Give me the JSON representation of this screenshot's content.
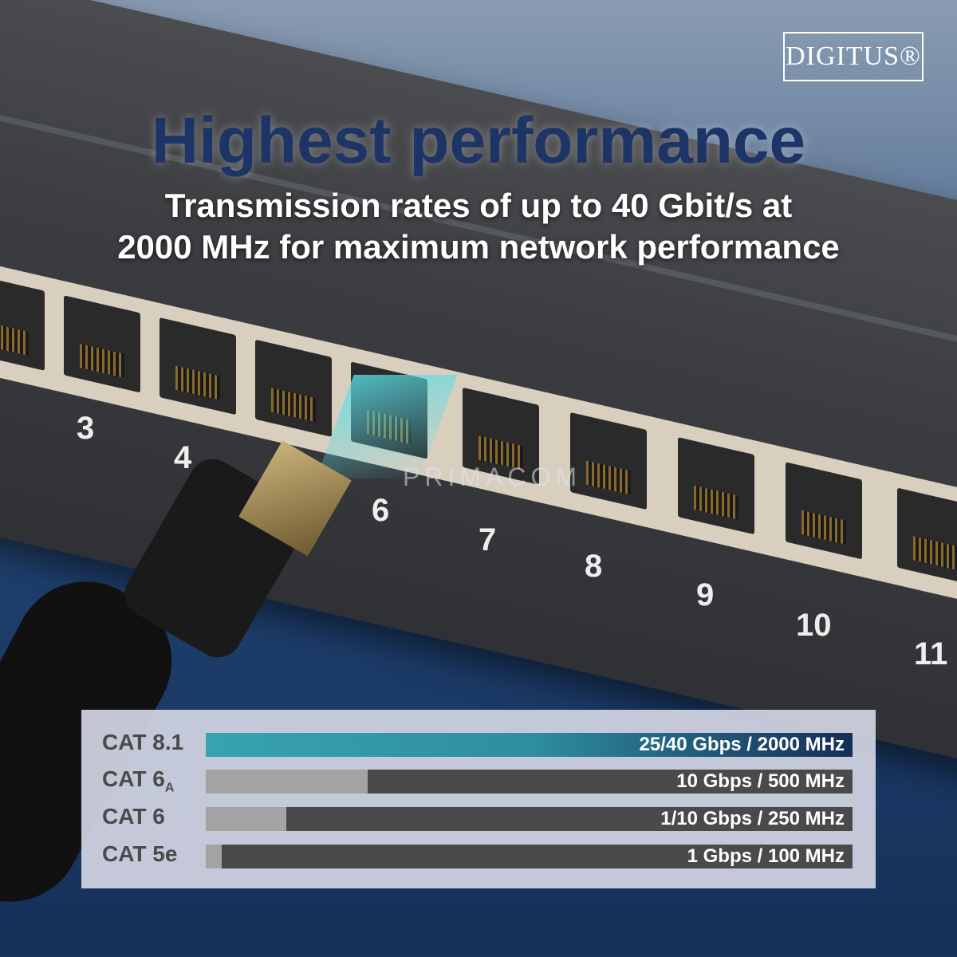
{
  "brand": {
    "logo": "DIGITUS®"
  },
  "headline": "Highest performance",
  "subheadline": {
    "line1": "Transmission rates of up to 40 Gbit/s at",
    "line2": "2000 MHz for maximum network performance"
  },
  "watermark": "PRIMACOM",
  "port_numbers": [
    "3",
    "4",
    "6",
    "7",
    "8",
    "9",
    "10",
    "11"
  ],
  "colors": {
    "headline": "#1c3566",
    "cat8_bar_start": "#38a3b0",
    "cat8_bar_end": "#172d55",
    "bar_bg": "#4a4a4a",
    "bar_fill": "#a3a3a3"
  },
  "comparison": [
    {
      "category": "CAT 8.1",
      "sub": "",
      "spec": "25/40 Gbps / 2000 MHz",
      "fill_percent": 100
    },
    {
      "category": "CAT 6",
      "sub": "A",
      "spec": "10 Gbps / 500 MHz",
      "fill_percent": 25
    },
    {
      "category": "CAT 6",
      "sub": "",
      "spec": "1/10 Gbps / 250 MHz",
      "fill_percent": 12.5
    },
    {
      "category": "CAT 5e",
      "sub": "",
      "spec": "1 Gbps / 100 MHz",
      "fill_percent": 2.5
    }
  ]
}
